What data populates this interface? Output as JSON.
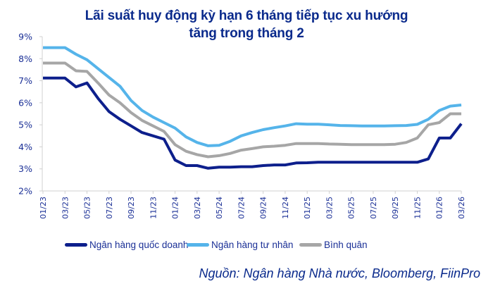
{
  "title": {
    "line1": "Lãi suất huy động kỳ hạn 6 tháng tiếp tục xu hướng",
    "line2": "tăng trong tháng 2"
  },
  "legend": [
    {
      "label": "Ngân hàng quốc doanh",
      "color": "#0d1f8c"
    },
    {
      "label": "Ngân hàng tư nhân",
      "color": "#55b4ea"
    },
    {
      "label": "Bình quân",
      "color": "#a6a6a6"
    }
  ],
  "source": "Nguồn:  Ngân hàng Nhà nước, Bloomberg, FiinPro",
  "chart_data": {
    "type": "line",
    "title": "Lãi suất huy động kỳ hạn 6 tháng tiếp tục xu hướng tăng trong tháng 2",
    "xlabel": "",
    "ylabel": "",
    "ylim": [
      2,
      9
    ],
    "yticks": [
      "2%",
      "3%",
      "4%",
      "5%",
      "6%",
      "7%",
      "8%",
      "9%"
    ],
    "xtick_labels": [
      "01/23",
      "03/23",
      "05/23",
      "07/23",
      "09/23",
      "11/23",
      "01/24",
      "03/24",
      "05/24",
      "07/24",
      "09/24",
      "11/24",
      "01/25",
      "03/25",
      "05/25",
      "07/25",
      "09/25",
      "11/25",
      "01/26",
      "03/26"
    ],
    "grid": false,
    "legend_position": "bottom",
    "x": [
      "01/23",
      "02/23",
      "03/23",
      "04/23",
      "05/23",
      "06/23",
      "07/23",
      "08/23",
      "09/23",
      "10/23",
      "11/23",
      "12/23",
      "01/24",
      "02/24",
      "03/24",
      "04/24",
      "05/24",
      "06/24",
      "07/24",
      "08/24",
      "09/24",
      "10/24",
      "11/24",
      "12/24",
      "01/25",
      "02/25",
      "03/25",
      "04/25",
      "05/25",
      "06/25",
      "07/25",
      "08/25",
      "09/25",
      "10/25",
      "11/25",
      "12/25",
      "01/26",
      "02/26",
      "03/26"
    ],
    "series": [
      {
        "name": "Ngân hàng quốc doanh",
        "color": "#0d1f8c",
        "values": [
          7.12,
          7.12,
          7.12,
          6.72,
          6.9,
          6.2,
          5.6,
          5.25,
          4.95,
          4.65,
          4.5,
          4.35,
          3.4,
          3.15,
          3.15,
          3.03,
          3.08,
          3.08,
          3.1,
          3.1,
          3.15,
          3.18,
          3.18,
          3.27,
          3.28,
          3.3,
          3.3,
          3.3,
          3.3,
          3.3,
          3.3,
          3.3,
          3.3,
          3.3,
          3.3,
          3.45,
          4.4,
          4.4,
          5.05
        ]
      },
      {
        "name": "Ngân hàng tư nhân",
        "color": "#55b4ea",
        "values": [
          8.5,
          8.5,
          8.5,
          8.2,
          7.95,
          7.55,
          7.15,
          6.75,
          6.1,
          5.65,
          5.35,
          5.1,
          4.85,
          4.45,
          4.2,
          4.05,
          4.07,
          4.25,
          4.5,
          4.65,
          4.78,
          4.87,
          4.95,
          5.05,
          5.03,
          5.03,
          5.0,
          4.97,
          4.96,
          4.95,
          4.95,
          4.95,
          4.96,
          4.97,
          5.02,
          5.25,
          5.65,
          5.85,
          5.9
        ]
      },
      {
        "name": "Bình quân",
        "color": "#a6a6a6",
        "values": [
          7.8,
          7.8,
          7.8,
          7.45,
          7.42,
          6.9,
          6.35,
          6.0,
          5.55,
          5.2,
          4.95,
          4.7,
          4.1,
          3.8,
          3.65,
          3.55,
          3.6,
          3.7,
          3.85,
          3.92,
          4.0,
          4.03,
          4.07,
          4.15,
          4.15,
          4.15,
          4.13,
          4.12,
          4.1,
          4.1,
          4.1,
          4.1,
          4.12,
          4.2,
          4.4,
          5.0,
          5.1,
          5.5,
          5.5
        ]
      }
    ]
  }
}
